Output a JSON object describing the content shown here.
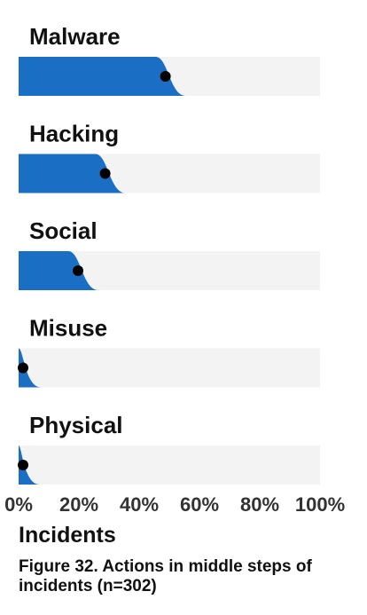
{
  "chart_data": {
    "type": "bar",
    "categories": [
      "Malware",
      "Hacking",
      "Social",
      "Misuse",
      "Physical"
    ],
    "values": [
      49,
      29,
      20,
      1,
      0.5
    ],
    "xlim": [
      0,
      100
    ],
    "x_ticks": [
      "0%",
      "20%",
      "40%",
      "60%",
      "80%",
      "100%"
    ],
    "xlabel": "Incidents",
    "grid": false,
    "colors": {
      "bar": "#1a6fc4",
      "track": "#f3f3f3",
      "point": "#000000"
    }
  },
  "caption": "Figure 32. Actions in middle steps of incidents (n=302)"
}
